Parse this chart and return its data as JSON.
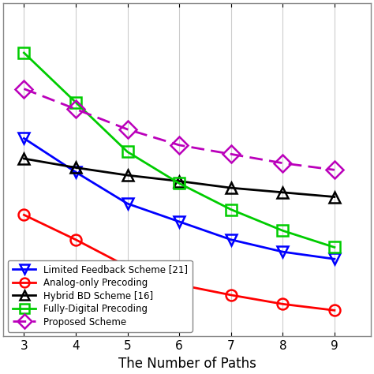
{
  "x": [
    3,
    4,
    5,
    6,
    7,
    8,
    9
  ],
  "limited_feedback": [
    6.2,
    5.45,
    4.75,
    4.35,
    3.95,
    3.68,
    3.52
  ],
  "analog_only": [
    4.5,
    3.95,
    3.35,
    2.95,
    2.72,
    2.52,
    2.38
  ],
  "hybrid_bd": [
    5.75,
    5.55,
    5.38,
    5.25,
    5.1,
    5.0,
    4.9
  ],
  "fully_digital": [
    8.1,
    7.0,
    5.9,
    5.2,
    4.62,
    4.15,
    3.78
  ],
  "proposed": [
    7.3,
    6.85,
    6.4,
    6.05,
    5.85,
    5.65,
    5.5
  ],
  "xlabel": "The Number of Paths",
  "xlim": [
    2.6,
    9.7
  ],
  "ylim": [
    1.8,
    9.2
  ],
  "xticks": [
    3,
    4,
    5,
    6,
    7,
    8,
    9
  ],
  "colors": {
    "limited_feedback": "#0000FF",
    "analog_only": "#FF0000",
    "hybrid_bd": "#000000",
    "fully_digital": "#00CC00",
    "proposed": "#BB00BB"
  },
  "legend_labels": [
    "Limited Feedback Scheme [21]",
    "Analog-only Precoding",
    "Hybrid BD Scheme [16]",
    "Fully-Digital Precoding",
    "Proposed Scheme"
  ],
  "background_color": "#ffffff",
  "grid_color": "#cccccc"
}
